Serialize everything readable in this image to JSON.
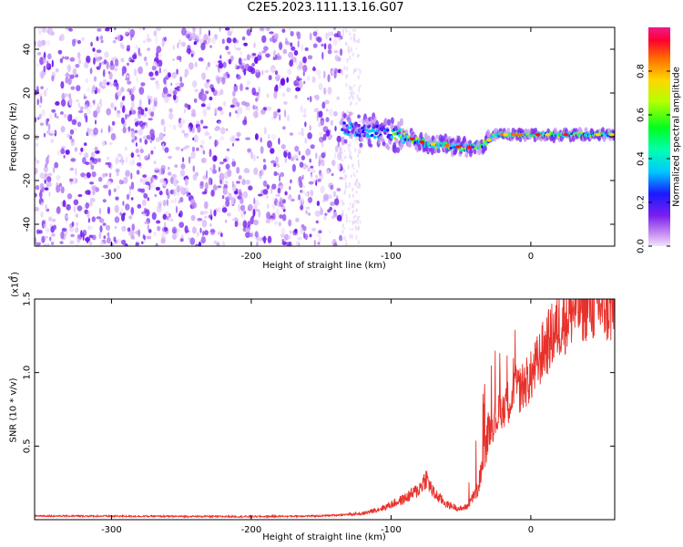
{
  "title": "C2E5.2023.111.13.16.G07",
  "chart_data": [
    {
      "type": "heatmap",
      "title": "",
      "xlabel": "Height of straight line (km)",
      "ylabel": "Frequency (Hz)",
      "xlim": [
        -355,
        60
      ],
      "ylim": [
        -50,
        50
      ],
      "xticks": [
        -300,
        -200,
        -100,
        0
      ],
      "yticks": [
        -40,
        -20,
        0,
        20,
        40
      ],
      "colorbar": {
        "label": "Normalized spectral amplitude",
        "range": [
          0,
          1
        ],
        "ticks": [
          0.0,
          0.2,
          0.4,
          0.6,
          0.8
        ],
        "tick_labels": [
          "0.0",
          "0.2",
          "0.4",
          "0.6",
          "0.8"
        ]
      },
      "signal_track": [
        {
          "x": -135,
          "y": 4
        },
        {
          "x": -120,
          "y": 3
        },
        {
          "x": -105,
          "y": 2
        },
        {
          "x": -90,
          "y": 0
        },
        {
          "x": -75,
          "y": -3
        },
        {
          "x": -60,
          "y": -4
        },
        {
          "x": -45,
          "y": -5
        },
        {
          "x": -35,
          "y": -4
        },
        {
          "x": -25,
          "y": 1
        },
        {
          "x": -10,
          "y": 1
        },
        {
          "x": 0,
          "y": 1
        },
        {
          "x": 20,
          "y": 1
        },
        {
          "x": 40,
          "y": 1
        },
        {
          "x": 60,
          "y": 1
        }
      ],
      "noise_region_x": [
        -355,
        -135
      ]
    },
    {
      "type": "line",
      "title": "",
      "xlabel": "Height of straight line (km)",
      "ylabel": "SNR (10 * v/v)",
      "y_multiplier_label": "(x10",
      "y_multiplier_exp": "4",
      "xlim": [
        -355,
        60
      ],
      "ylim": [
        0,
        15000
      ],
      "xticks": [
        -300,
        -200,
        -100,
        0
      ],
      "yticks": [
        5000,
        10000,
        15000
      ],
      "ytick_labels": [
        "0.5",
        "1.0",
        "1.5"
      ],
      "series_color": "#e8312b",
      "envelope": [
        {
          "x": -355,
          "y": 250
        },
        {
          "x": -200,
          "y": 200
        },
        {
          "x": -150,
          "y": 250
        },
        {
          "x": -120,
          "y": 400
        },
        {
          "x": -105,
          "y": 800
        },
        {
          "x": -90,
          "y": 1400
        },
        {
          "x": -80,
          "y": 2000
        },
        {
          "x": -75,
          "y": 2800
        },
        {
          "x": -70,
          "y": 1800
        },
        {
          "x": -60,
          "y": 1000
        },
        {
          "x": -50,
          "y": 700
        },
        {
          "x": -45,
          "y": 900
        },
        {
          "x": -38,
          "y": 2000
        },
        {
          "x": -30,
          "y": 6000
        },
        {
          "x": -20,
          "y": 7500
        },
        {
          "x": -10,
          "y": 8500
        },
        {
          "x": 0,
          "y": 9500
        },
        {
          "x": 10,
          "y": 11500
        },
        {
          "x": 20,
          "y": 13000
        },
        {
          "x": 30,
          "y": 14000
        },
        {
          "x": 40,
          "y": 14500
        },
        {
          "x": 50,
          "y": 14300
        },
        {
          "x": 60,
          "y": 14000
        }
      ]
    }
  ]
}
